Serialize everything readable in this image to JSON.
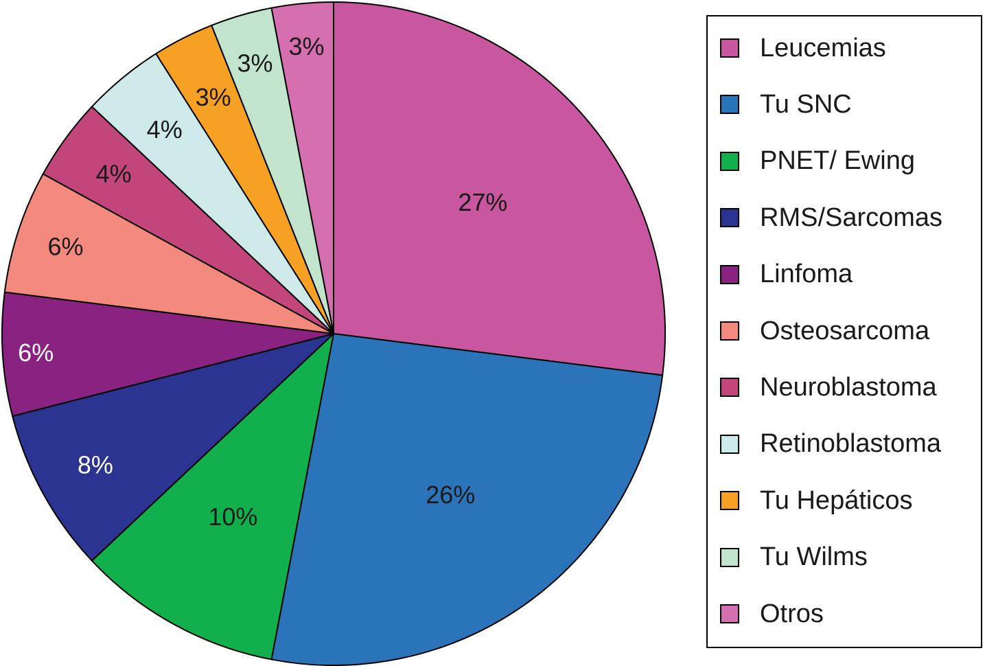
{
  "chart_data": {
    "type": "pie",
    "title": "",
    "start_angle": "12 o'clock",
    "direction": "clockwise",
    "legend_placement": "right",
    "slices": [
      {
        "name": "Leucemias",
        "value": 27,
        "label": "27%",
        "color": "#C857A0",
        "label_color": "#1a1a1a"
      },
      {
        "name": "Tu SNC",
        "value": 26,
        "label": "26%",
        "color": "#2B74BA",
        "label_color": "#1a1a1a"
      },
      {
        "name": "PNET/ Ewing",
        "value": 10,
        "label": "10%",
        "color": "#12B04D",
        "label_color": "#1a1a1a"
      },
      {
        "name": "RMS/Sarcomas",
        "value": 8,
        "label": "8%",
        "color": "#2B3491",
        "label_color": "#ffffff"
      },
      {
        "name": "Linfoma",
        "value": 6,
        "label": "6%",
        "color": "#8A2282",
        "label_color": "#ffffff"
      },
      {
        "name": "Osteosarcoma",
        "value": 6,
        "label": "6%",
        "color": "#F38A7D",
        "label_color": "#1a1a1a"
      },
      {
        "name": "Neuroblastoma",
        "value": 4,
        "label": "4%",
        "color": "#C2467C",
        "label_color": "#1a1a1a"
      },
      {
        "name": "Retinoblastoma",
        "value": 4,
        "label": "4%",
        "color": "#CDE9E8",
        "label_color": "#1a1a1a"
      },
      {
        "name": "Tu Hepáticos",
        "value": 3,
        "label": "3%",
        "color": "#F6A024",
        "label_color": "#1a1a1a"
      },
      {
        "name": "Tu Wilms",
        "value": 3,
        "label": "3%",
        "color": "#C3E4CC",
        "label_color": "#1a1a1a"
      },
      {
        "name": "Otros",
        "value": 3,
        "label": "3%",
        "color": "#D56FAF",
        "label_color": "#1a1a1a"
      }
    ]
  }
}
